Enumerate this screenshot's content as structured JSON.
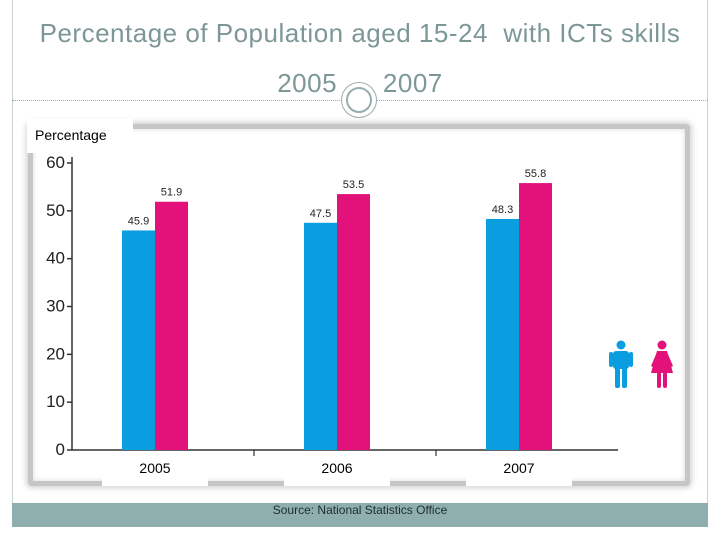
{
  "title": {
    "line1": "Percentage of Population aged 15-24  with ICTs skills",
    "line2": "2005  –  2007"
  },
  "footer": {
    "source": "Source: National Statistics Office"
  },
  "legend_icons": [
    {
      "name": "male-figure-icon",
      "color": "#0a9ee0"
    },
    {
      "name": "female-figure-icon",
      "color": "#e2127a"
    }
  ],
  "chart_data": {
    "type": "bar",
    "title": "Percentage of Population aged 15-24 with ICTs skills 2005 – 2007",
    "ylabel": "Percentage",
    "xlabel": "",
    "ylim": [
      0,
      60
    ],
    "yticks": [
      0,
      10,
      20,
      30,
      40,
      50,
      60
    ],
    "categories": [
      "2005",
      "2006",
      "2007"
    ],
    "series": [
      {
        "name": "Male",
        "color": "#0a9ee0",
        "values": [
          45.9,
          47.5,
          48.3
        ]
      },
      {
        "name": "Female",
        "color": "#e2127a",
        "values": [
          51.9,
          53.5,
          55.8
        ]
      }
    ]
  }
}
